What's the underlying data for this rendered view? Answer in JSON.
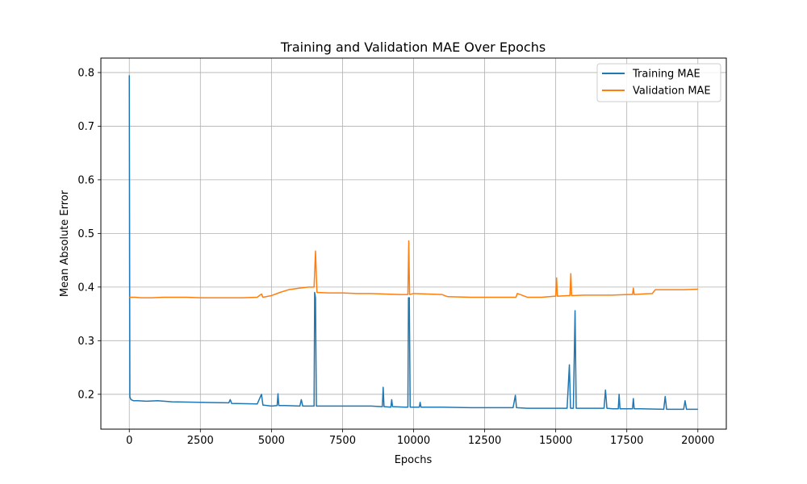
{
  "chart_data": {
    "type": "line",
    "title": "Training and Validation MAE Over Epochs",
    "xlabel": "Epochs",
    "ylabel": "Mean Absolute Error",
    "xlim": [
      -1000,
      21000
    ],
    "ylim": [
      0.135,
      0.827
    ],
    "x_ticks": [
      0,
      2500,
      5000,
      7500,
      10000,
      12500,
      15000,
      17500,
      20000
    ],
    "x_tick_labels": [
      "0",
      "2500",
      "5000",
      "7500",
      "10000",
      "12500",
      "15000",
      "17500",
      "20000"
    ],
    "y_ticks": [
      0.2,
      0.3,
      0.4,
      0.5,
      0.6,
      0.7,
      0.8
    ],
    "y_tick_labels": [
      "0.2",
      "0.3",
      "0.4",
      "0.5",
      "0.6",
      "0.7",
      "0.8"
    ],
    "grid": true,
    "legend_position": "top-right",
    "series": [
      {
        "name": "Training MAE",
        "color": "#1f77b4",
        "x": [
          0,
          20,
          60,
          150,
          300,
          600,
          1000,
          1500,
          2500,
          3500,
          3550,
          3600,
          4500,
          4650,
          4700,
          5000,
          5200,
          5230,
          5260,
          5500,
          6000,
          6050,
          6100,
          6500,
          6520,
          6550,
          6580,
          6700,
          7500,
          8000,
          8500,
          8900,
          8930,
          8960,
          9200,
          9230,
          9260,
          9700,
          9800,
          9820,
          9850,
          9880,
          10000,
          10200,
          10230,
          10260,
          10500,
          11000,
          12000,
          13000,
          13500,
          13580,
          13620,
          14000,
          15000,
          15400,
          15480,
          15520,
          15550,
          15620,
          15680,
          15720,
          16000,
          16700,
          16750,
          16800,
          17000,
          17200,
          17230,
          17260,
          17500,
          17700,
          17730,
          17760,
          18000,
          18800,
          18850,
          18900,
          19200,
          19500,
          19550,
          19600,
          20000
        ],
        "values": [
          0.795,
          0.195,
          0.19,
          0.188,
          0.188,
          0.187,
          0.188,
          0.186,
          0.185,
          0.184,
          0.19,
          0.183,
          0.182,
          0.2,
          0.18,
          0.178,
          0.179,
          0.201,
          0.179,
          0.179,
          0.178,
          0.19,
          0.178,
          0.178,
          0.39,
          0.38,
          0.178,
          0.178,
          0.178,
          0.178,
          0.178,
          0.177,
          0.213,
          0.177,
          0.176,
          0.19,
          0.177,
          0.176,
          0.176,
          0.38,
          0.38,
          0.176,
          0.176,
          0.176,
          0.185,
          0.176,
          0.176,
          0.176,
          0.175,
          0.175,
          0.175,
          0.198,
          0.175,
          0.174,
          0.174,
          0.174,
          0.255,
          0.174,
          0.174,
          0.174,
          0.356,
          0.174,
          0.174,
          0.174,
          0.208,
          0.174,
          0.173,
          0.173,
          0.2,
          0.173,
          0.173,
          0.173,
          0.192,
          0.173,
          0.173,
          0.172,
          0.196,
          0.172,
          0.172,
          0.172,
          0.188,
          0.172,
          0.172
        ]
      },
      {
        "name": "Validation MAE",
        "color": "#ff7f0e",
        "x": [
          0,
          200,
          400,
          800,
          1200,
          1600,
          2000,
          2500,
          3000,
          3500,
          4000,
          4500,
          4650,
          4700,
          5000,
          5300,
          5600,
          6000,
          6300,
          6500,
          6550,
          6600,
          7000,
          7500,
          8000,
          8500,
          9000,
          9500,
          9800,
          9830,
          9860,
          10000,
          10500,
          11000,
          11200,
          12000,
          13000,
          13600,
          13650,
          14000,
          14500,
          15000,
          15030,
          15060,
          15100,
          15400,
          15500,
          15530,
          15560,
          16000,
          16500,
          17000,
          17500,
          17700,
          17730,
          17760,
          18000,
          18400,
          18500,
          19000,
          19500,
          20000
        ],
        "values": [
          0.381,
          0.381,
          0.38,
          0.38,
          0.381,
          0.381,
          0.381,
          0.38,
          0.38,
          0.38,
          0.38,
          0.381,
          0.387,
          0.381,
          0.384,
          0.39,
          0.395,
          0.398,
          0.4,
          0.4,
          0.467,
          0.39,
          0.389,
          0.389,
          0.388,
          0.388,
          0.387,
          0.386,
          0.386,
          0.486,
          0.386,
          0.388,
          0.387,
          0.386,
          0.382,
          0.381,
          0.381,
          0.381,
          0.388,
          0.381,
          0.381,
          0.383,
          0.417,
          0.383,
          0.383,
          0.384,
          0.384,
          0.425,
          0.384,
          0.385,
          0.385,
          0.385,
          0.386,
          0.386,
          0.398,
          0.386,
          0.387,
          0.388,
          0.395,
          0.395,
          0.395,
          0.396
        ]
      }
    ]
  }
}
